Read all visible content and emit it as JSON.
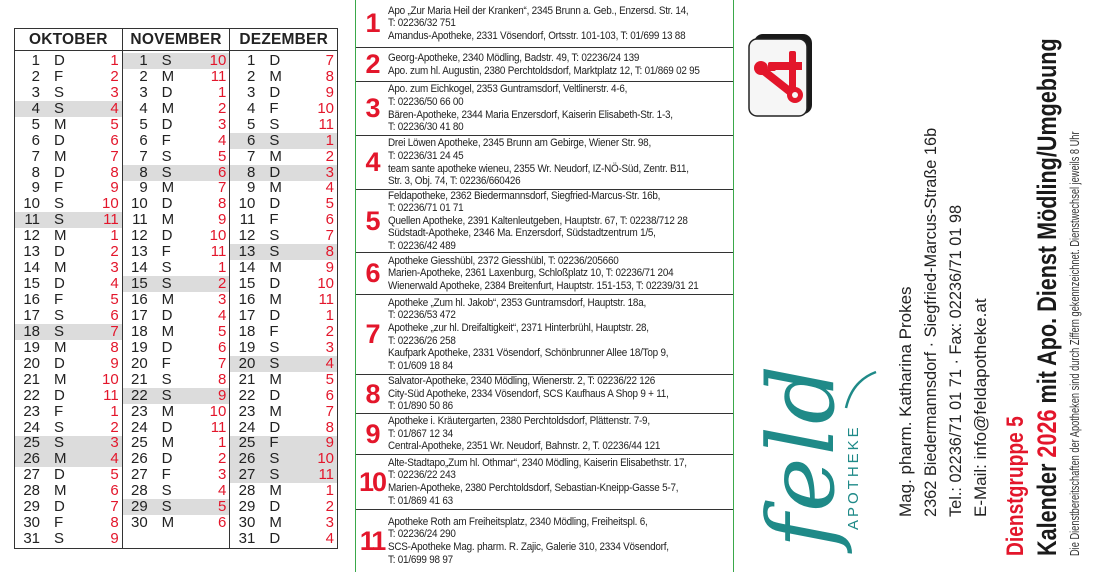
{
  "calendar": {
    "months": [
      {
        "name": "OKTOBER",
        "rows": [
          {
            "d": "1",
            "w": "D",
            "g": "1"
          },
          {
            "d": "2",
            "w": "F",
            "g": "2"
          },
          {
            "d": "3",
            "w": "S",
            "g": "3"
          },
          {
            "d": "4",
            "w": "S",
            "g": "4",
            "h": true
          },
          {
            "d": "5",
            "w": "M",
            "g": "5"
          },
          {
            "d": "6",
            "w": "D",
            "g": "6"
          },
          {
            "d": "7",
            "w": "M",
            "g": "7"
          },
          {
            "d": "8",
            "w": "D",
            "g": "8"
          },
          {
            "d": "9",
            "w": "F",
            "g": "9"
          },
          {
            "d": "10",
            "w": "S",
            "g": "10"
          },
          {
            "d": "11",
            "w": "S",
            "g": "11",
            "h": true
          },
          {
            "d": "12",
            "w": "M",
            "g": "1"
          },
          {
            "d": "13",
            "w": "D",
            "g": "2"
          },
          {
            "d": "14",
            "w": "M",
            "g": "3"
          },
          {
            "d": "15",
            "w": "D",
            "g": "4"
          },
          {
            "d": "16",
            "w": "F",
            "g": "5"
          },
          {
            "d": "17",
            "w": "S",
            "g": "6"
          },
          {
            "d": "18",
            "w": "S",
            "g": "7",
            "h": true
          },
          {
            "d": "19",
            "w": "M",
            "g": "8"
          },
          {
            "d": "20",
            "w": "D",
            "g": "9"
          },
          {
            "d": "21",
            "w": "M",
            "g": "10"
          },
          {
            "d": "22",
            "w": "D",
            "g": "11"
          },
          {
            "d": "23",
            "w": "F",
            "g": "1"
          },
          {
            "d": "24",
            "w": "S",
            "g": "2"
          },
          {
            "d": "25",
            "w": "S",
            "g": "3",
            "h": true
          },
          {
            "d": "26",
            "w": "M",
            "g": "4",
            "h": true
          },
          {
            "d": "27",
            "w": "D",
            "g": "5"
          },
          {
            "d": "28",
            "w": "M",
            "g": "6"
          },
          {
            "d": "29",
            "w": "D",
            "g": "7"
          },
          {
            "d": "30",
            "w": "F",
            "g": "8"
          },
          {
            "d": "31",
            "w": "S",
            "g": "9"
          }
        ]
      },
      {
        "name": "NOVEMBER",
        "rows": [
          {
            "d": "1",
            "w": "S",
            "g": "10",
            "h": true
          },
          {
            "d": "2",
            "w": "M",
            "g": "11"
          },
          {
            "d": "3",
            "w": "D",
            "g": "1"
          },
          {
            "d": "4",
            "w": "M",
            "g": "2"
          },
          {
            "d": "5",
            "w": "D",
            "g": "3"
          },
          {
            "d": "6",
            "w": "F",
            "g": "4"
          },
          {
            "d": "7",
            "w": "S",
            "g": "5"
          },
          {
            "d": "8",
            "w": "S",
            "g": "6",
            "h": true
          },
          {
            "d": "9",
            "w": "M",
            "g": "7"
          },
          {
            "d": "10",
            "w": "D",
            "g": "8"
          },
          {
            "d": "11",
            "w": "M",
            "g": "9"
          },
          {
            "d": "12",
            "w": "D",
            "g": "10"
          },
          {
            "d": "13",
            "w": "F",
            "g": "11"
          },
          {
            "d": "14",
            "w": "S",
            "g": "1"
          },
          {
            "d": "15",
            "w": "S",
            "g": "2",
            "h": true
          },
          {
            "d": "16",
            "w": "M",
            "g": "3"
          },
          {
            "d": "17",
            "w": "D",
            "g": "4"
          },
          {
            "d": "18",
            "w": "M",
            "g": "5"
          },
          {
            "d": "19",
            "w": "D",
            "g": "6"
          },
          {
            "d": "20",
            "w": "F",
            "g": "7"
          },
          {
            "d": "21",
            "w": "S",
            "g": "8"
          },
          {
            "d": "22",
            "w": "S",
            "g": "9",
            "h": true
          },
          {
            "d": "23",
            "w": "M",
            "g": "10"
          },
          {
            "d": "24",
            "w": "D",
            "g": "11"
          },
          {
            "d": "25",
            "w": "M",
            "g": "1"
          },
          {
            "d": "26",
            "w": "D",
            "g": "2"
          },
          {
            "d": "27",
            "w": "F",
            "g": "3"
          },
          {
            "d": "28",
            "w": "S",
            "g": "4"
          },
          {
            "d": "29",
            "w": "S",
            "g": "5",
            "h": true
          },
          {
            "d": "30",
            "w": "M",
            "g": "6"
          }
        ]
      },
      {
        "name": "DEZEMBER",
        "rows": [
          {
            "d": "1",
            "w": "D",
            "g": "7"
          },
          {
            "d": "2",
            "w": "M",
            "g": "8"
          },
          {
            "d": "3",
            "w": "D",
            "g": "9"
          },
          {
            "d": "4",
            "w": "F",
            "g": "10"
          },
          {
            "d": "5",
            "w": "S",
            "g": "11"
          },
          {
            "d": "6",
            "w": "S",
            "g": "1",
            "h": true
          },
          {
            "d": "7",
            "w": "M",
            "g": "2"
          },
          {
            "d": "8",
            "w": "D",
            "g": "3",
            "h": true
          },
          {
            "d": "9",
            "w": "M",
            "g": "4"
          },
          {
            "d": "10",
            "w": "D",
            "g": "5"
          },
          {
            "d": "11",
            "w": "F",
            "g": "6"
          },
          {
            "d": "12",
            "w": "S",
            "g": "7"
          },
          {
            "d": "13",
            "w": "S",
            "g": "8",
            "h": true
          },
          {
            "d": "14",
            "w": "M",
            "g": "9"
          },
          {
            "d": "15",
            "w": "D",
            "g": "10"
          },
          {
            "d": "16",
            "w": "M",
            "g": "11"
          },
          {
            "d": "17",
            "w": "D",
            "g": "1"
          },
          {
            "d": "18",
            "w": "F",
            "g": "2"
          },
          {
            "d": "19",
            "w": "S",
            "g": "3"
          },
          {
            "d": "20",
            "w": "S",
            "g": "4",
            "h": true
          },
          {
            "d": "21",
            "w": "M",
            "g": "5"
          },
          {
            "d": "22",
            "w": "D",
            "g": "6"
          },
          {
            "d": "23",
            "w": "M",
            "g": "7"
          },
          {
            "d": "24",
            "w": "D",
            "g": "8"
          },
          {
            "d": "25",
            "w": "F",
            "g": "9",
            "h": true
          },
          {
            "d": "26",
            "w": "S",
            "g": "10",
            "h": true
          },
          {
            "d": "27",
            "w": "S",
            "g": "11",
            "h": true
          },
          {
            "d": "28",
            "w": "M",
            "g": "1"
          },
          {
            "d": "29",
            "w": "D",
            "g": "2"
          },
          {
            "d": "30",
            "w": "M",
            "g": "3"
          },
          {
            "d": "31",
            "w": "D",
            "g": "4"
          }
        ]
      }
    ]
  },
  "groups": [
    {
      "num": "1",
      "lines": [
        "Apo „Zur Maria Heil der Kranken“, 2345 Brunn a. Geb., Enzersd. Str. 14,",
        "T: 02236/32 751",
        "Amandus-Apotheke, 2331 Vösendorf, Ortsstr. 101-103, T: 01/699 13 88"
      ]
    },
    {
      "num": "2",
      "lines": [
        "Georg-Apotheke, 2340 Mödling, Badstr. 49, T: 02236/24 139",
        "Apo. zum hl. Augustin, 2380 Perchtoldsdorf, Marktplatz 12, T: 01/869 02 95"
      ]
    },
    {
      "num": "3",
      "lines": [
        "Apo. zum Eichkogel, 2353 Guntramsdorf, Veltlinerstr. 4-6,",
        "T: 02236/50 66 00",
        "Bären-Apotheke, 2344 Maria Enzersdorf, Kaiserin Elisabeth-Str. 1-3,",
        "T: 02236/30 41 80"
      ]
    },
    {
      "num": "4",
      "lines": [
        "Drei Löwen Apotheke, 2345 Brunn am Gebirge, Wiener Str. 98,",
        "T: 02236/31 24 45",
        "team sante apotheke wieneu, 2355 Wr. Neudorf, IZ-NÖ-Süd, Zentr. B11,",
        "Str. 3, Obj. 74, T: 02236/660426"
      ]
    },
    {
      "num": "5",
      "lines": [
        "Feldapotheke, 2362 Biedermannsdorf, Siegfried-Marcus-Str. 16b,",
        "T: 02236/71 01 71",
        "Quellen Apotheke, 2391 Kaltenleutgeben, Hauptstr. 67, T: 02238/712 28",
        "Südstadt-Apotheke, 2346 Ma. Enzersdorf, Südstadtzentrum 1/5,",
        "T: 02236/42 489"
      ]
    },
    {
      "num": "6",
      "lines": [
        "Apotheke Giesshübl, 2372 Giesshübl, T: 02236/205660",
        "Marien-Apotheke, 2361 Laxenburg, Schloßplatz 10, T: 02236/71 204",
        "Wienerwald Apotheke, 2384 Breitenfurt, Hauptstr. 151-153, T: 02239/31 21"
      ]
    },
    {
      "num": "7",
      "lines": [
        "Apotheke „Zum hl. Jakob“, 2353 Guntramsdorf, Hauptstr. 18a,",
        "T: 02236/53 472",
        "Apotheke „zur hl. Dreifaltigkeit“, 2371 Hinterbrühl, Hauptstr. 28,",
        "T: 02236/26 258",
        "Kaufpark Apotheke, 2331 Vösendorf, Schönbrunner Allee 18/Top 9,",
        "T: 01/609 18 84"
      ]
    },
    {
      "num": "8",
      "lines": [
        "Salvator-Apotheke, 2340 Mödling, Wienerstr. 2, T: 02236/22 126",
        "City-Süd Apotheke, 2334 Vösendorf, SCS Kaufhaus A Shop 9 + 11,",
        "T: 01/890 50 86"
      ]
    },
    {
      "num": "9",
      "lines": [
        "Apotheke i. Kräutergarten, 2380 Perchtoldsdorf, Plättenstr. 7-9,",
        "T: 01/867 12 34",
        "Central-Apotheke, 2351 Wr. Neudorf, Bahnstr. 2, T. 02236/44 121"
      ]
    },
    {
      "num": "10",
      "lines": [
        "Alte-Stadtapo„Zum hl. Othmar“, 2340 Mödling, Kaiserin Elisabethstr. 17,",
        "T: 02236/22 243",
        "Marien-Apotheke, 2380 Perchtoldsdorf, Sebastian-Kneipp-Gasse 5-7,",
        "T: 01/869 41 63"
      ]
    },
    {
      "num": "11",
      "lines": [
        "Apotheke Roth am Freiheitsplatz, 2340 Mödling, Freiheitspl. 6,",
        "T: 02236/24 290",
        "SCS-Apotheke Mag. pharm. R. Zajic, Galerie 310, 2334 Vösendorf,",
        "T: 01/699 98 97"
      ]
    }
  ],
  "brand": {
    "logo_word": "feld",
    "logo_sub": "APOTHEKE",
    "icon": "apotheke-a-icon"
  },
  "contact": {
    "owner": "Mag. pharm. Katharina Prokes",
    "address": "2362 Biedermannsdorf  ·  Siegfried-Marcus-Straße 16b",
    "phone": "Tel.: 02236/71 01 71  ·  Fax: 02236/71 01 98",
    "email": "E-Mail: info@feldapotheke.at"
  },
  "title": {
    "group": "Dienstgruppe 5",
    "prefix": "Kalender ",
    "year": "2026",
    "suffix": " mit Apo. Dienst Mödling/Umgebung",
    "note": "Die Dienstbereitschaften der Apotheken sind durch Ziffern gekennzeichnet. Dienstwechsel jeweils 8 Uhr"
  },
  "colors": {
    "red": "#e3162b",
    "teal": "#1f8a88",
    "green": "#3aa84a",
    "highlight": "#dcdcdc"
  }
}
